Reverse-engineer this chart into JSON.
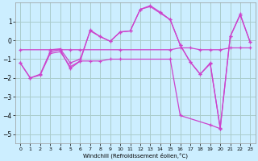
{
  "xlabel": "Windchill (Refroidissement éolien,°C)",
  "background_color": "#cceeff",
  "grid_color": "#aacccc",
  "line_color": "#cc44cc",
  "xlim": [
    -0.5,
    23.5
  ],
  "ylim": [
    -5.5,
    2.0
  ],
  "xtick_labels": [
    "0",
    "1",
    "2",
    "3",
    "4",
    "5",
    "6",
    "7",
    "8",
    "9",
    "10",
    "11",
    "12",
    "13",
    "14",
    "15",
    "16",
    "17",
    "18",
    "19",
    "20",
    "21",
    "22",
    "23"
  ],
  "yticks": [
    -5,
    -4,
    -3,
    -2,
    -1,
    0,
    1
  ],
  "series1": {
    "x": [
      0,
      1,
      2,
      3,
      4,
      5,
      6,
      7,
      8,
      9,
      10,
      11,
      12,
      13,
      14,
      15,
      16,
      17,
      18,
      19,
      20,
      21,
      22,
      23
    ],
    "y": [
      -1.2,
      -2.0,
      -1.8,
      -0.6,
      -0.5,
      -1.5,
      -1.1,
      0.55,
      0.2,
      -0.05,
      0.45,
      0.5,
      1.65,
      1.85,
      1.5,
      1.1,
      -0.25,
      -1.15,
      -1.8,
      -1.2,
      -4.7,
      0.2,
      1.4,
      -0.1
    ]
  },
  "series2": {
    "x": [
      0,
      5,
      6,
      10,
      15,
      16,
      17,
      18,
      19,
      20,
      21,
      22,
      23
    ],
    "y": [
      -0.5,
      -0.5,
      -0.5,
      -0.5,
      -0.5,
      -0.4,
      -0.4,
      -0.5,
      -0.5,
      -0.5,
      -0.4,
      -0.4,
      -0.4
    ]
  },
  "series3": {
    "x": [
      0,
      1,
      2,
      3,
      4,
      5,
      6,
      7,
      8,
      9,
      10,
      15,
      16,
      19,
      20
    ],
    "y": [
      -1.2,
      -2.0,
      -1.85,
      -0.7,
      -0.6,
      -1.4,
      -1.1,
      -1.1,
      -1.1,
      -1.0,
      -1.0,
      -1.0,
      -4.0,
      -4.5,
      -4.7
    ]
  },
  "series4": {
    "x": [
      3,
      4,
      5,
      6,
      7,
      8,
      9,
      10,
      11,
      12,
      13,
      14,
      15,
      16,
      17,
      18,
      19,
      20,
      21,
      22,
      23
    ],
    "y": [
      -0.5,
      -0.45,
      -1.2,
      -1.0,
      0.5,
      0.2,
      -0.05,
      0.45,
      0.5,
      1.65,
      1.8,
      1.45,
      1.1,
      -0.25,
      -1.15,
      -1.8,
      -1.25,
      -4.65,
      0.2,
      1.35,
      -0.1
    ]
  }
}
